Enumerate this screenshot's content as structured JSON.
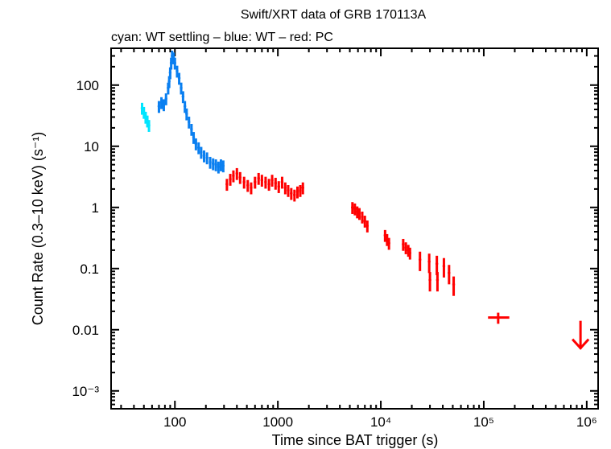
{
  "chart_data": {
    "type": "scatter",
    "title": "Swift/XRT data of GRB 170113A",
    "subtitle": "cyan: WT settling – blue: WT – red: PC",
    "xlabel": "Time since BAT trigger (s)",
    "ylabel": "Count Rate (0.3–10 keV) (s⁻¹)",
    "x_scale": "log",
    "y_scale": "log",
    "xlim": [
      24,
      1290000
    ],
    "ylim": [
      0.00051,
      400
    ],
    "grid": false,
    "x_ticks": [
      {
        "value": 100,
        "label": "100"
      },
      {
        "value": 1000,
        "label": "1000"
      },
      {
        "value": 10000,
        "label": "10⁴"
      },
      {
        "value": 100000,
        "label": "10⁵"
      },
      {
        "value": 1000000,
        "label": "10⁶"
      }
    ],
    "y_ticks": [
      {
        "value": 100,
        "label": "100"
      },
      {
        "value": 10,
        "label": "10"
      },
      {
        "value": 1,
        "label": "1"
      },
      {
        "value": 0.1,
        "label": "0.1"
      },
      {
        "value": 0.01,
        "label": "0.01"
      },
      {
        "value": 0.001,
        "label": "10⁻³"
      }
    ],
    "series": [
      {
        "mode": "WT settling",
        "color": "#00e5ff",
        "points": [
          [
            48,
            42
          ],
          [
            50,
            36
          ],
          [
            52,
            30
          ],
          [
            54,
            26
          ],
          [
            56,
            22
          ]
        ]
      },
      {
        "mode": "WT",
        "color": "#0a7ff0",
        "points": [
          [
            70,
            45
          ],
          [
            74,
            52
          ],
          [
            78,
            48
          ],
          [
            82,
            60
          ],
          [
            86,
            90
          ],
          [
            88,
            115
          ],
          [
            90,
            160
          ],
          [
            92,
            230
          ],
          [
            94,
            300
          ],
          [
            97,
            280
          ],
          [
            100,
            230
          ],
          [
            105,
            170
          ],
          [
            110,
            130
          ],
          [
            115,
            90
          ],
          [
            120,
            65
          ],
          [
            125,
            45
          ],
          [
            130,
            34
          ],
          [
            137,
            25
          ],
          [
            145,
            19
          ],
          [
            152,
            14
          ],
          [
            160,
            11
          ],
          [
            170,
            9.5
          ],
          [
            180,
            8
          ],
          [
            192,
            7
          ],
          [
            205,
            6.5
          ],
          [
            220,
            5.5
          ],
          [
            235,
            5.2
          ],
          [
            250,
            5
          ],
          [
            265,
            4.6
          ],
          [
            280,
            5
          ],
          [
            295,
            4.8
          ]
        ]
      },
      {
        "mode": "PC",
        "color": "#ff0000",
        "points": [
          [
            320,
            2.4
          ],
          [
            345,
            2.9
          ],
          [
            370,
            3.3
          ],
          [
            400,
            3.6
          ],
          [
            430,
            3.1
          ],
          [
            470,
            2.6
          ],
          [
            510,
            2.3
          ],
          [
            550,
            2.1
          ],
          [
            600,
            2.6
          ],
          [
            650,
            3.0
          ],
          [
            700,
            2.8
          ],
          [
            760,
            2.6
          ],
          [
            820,
            2.4
          ],
          [
            880,
            2.8
          ],
          [
            950,
            2.5
          ],
          [
            1020,
            2.2
          ],
          [
            1100,
            2.6
          ],
          [
            1180,
            2.1
          ],
          [
            1260,
            1.9
          ],
          [
            1350,
            1.7
          ],
          [
            1450,
            1.6
          ],
          [
            1550,
            1.8
          ],
          [
            1650,
            1.9
          ],
          [
            1750,
            2.1
          ],
          [
            5300,
            1.0
          ],
          [
            5600,
            0.95
          ],
          [
            5900,
            0.85
          ],
          [
            6200,
            0.8
          ],
          [
            6600,
            0.7
          ],
          [
            7000,
            0.6
          ],
          [
            7400,
            0.5
          ],
          [
            11000,
            0.35
          ],
          [
            11500,
            0.3
          ],
          [
            12000,
            0.26
          ],
          [
            16500,
            0.25
          ],
          [
            17500,
            0.22
          ],
          [
            18500,
            0.2
          ],
          [
            19200,
            0.18
          ],
          [
            24000,
            0.14
          ],
          [
            29500,
            0.13
          ],
          [
            30000,
            0.065
          ],
          [
            35000,
            0.12
          ],
          [
            35500,
            0.065
          ],
          [
            41000,
            0.11
          ],
          [
            46000,
            0.085
          ],
          [
            51000,
            0.055
          ]
        ]
      }
    ],
    "pc_late_point": {
      "x": 138000,
      "x_err": [
        110000,
        177000
      ],
      "y": 0.0158,
      "y_err": [
        0.0125,
        0.019
      ],
      "color": "#ff0000"
    },
    "upper_limit": {
      "x": 870000,
      "y": 0.014,
      "color": "#ff0000"
    }
  }
}
